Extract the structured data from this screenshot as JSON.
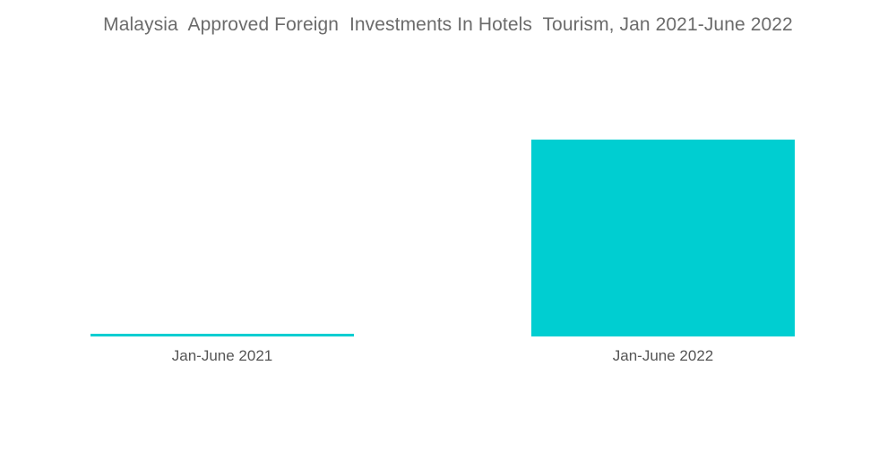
{
  "chart_data": {
    "type": "bar",
    "title": "Malaysia  Approved Foreign  Investments In Hotels  Tourism, Jan 2021-June 2022",
    "xlabel": "",
    "ylabel": "",
    "categories": [
      "Jan-June 2021",
      "Jan-June 2022"
    ],
    "values": [
      1,
      100
    ],
    "ylim": [
      0,
      100
    ],
    "grid": false,
    "legend": "none",
    "bar_color": "#00CED1"
  }
}
